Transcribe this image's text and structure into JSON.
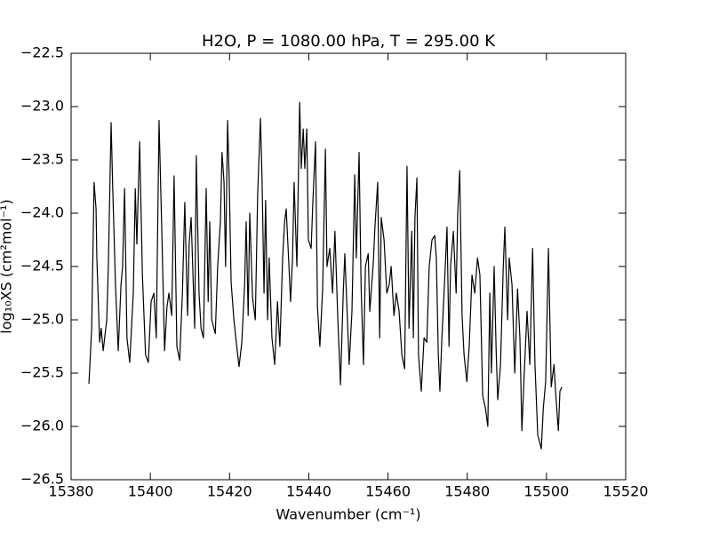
{
  "chart_data": {
    "type": "line",
    "title": "H2O, P = 1080.00 hPa, T = 295.00 K",
    "xlabel": "Wavenumber (cm⁻¹)",
    "ylabel": "log₁₀XS (cm²mol⁻¹)",
    "color": "#000000",
    "xlim": [
      15380,
      15520
    ],
    "xticks": [
      15380,
      15400,
      15420,
      15440,
      15460,
      15480,
      15500,
      15520
    ],
    "ylim": [
      -26.5,
      -22.5
    ],
    "yticks": [
      {
        "value": -22.5,
        "label": "−22.5"
      },
      {
        "value": -23.0,
        "label": "−23.0"
      },
      {
        "value": -23.5,
        "label": "−23.5"
      },
      {
        "value": -24.0,
        "label": "−24.0"
      },
      {
        "value": -24.5,
        "label": "−24.5"
      },
      {
        "value": -25.0,
        "label": "−25.0"
      },
      {
        "value": -25.5,
        "label": "−25.5"
      },
      {
        "value": -26.0,
        "label": "−26.0"
      },
      {
        "value": -26.5,
        "label": "−26.5"
      }
    ],
    "x": [
      15384.5,
      15385.2,
      15385.8,
      15386.3,
      15386.5,
      15387.2,
      15387.6,
      15388.1,
      15389.0,
      15389.4,
      15390.1,
      15390.5,
      15391.2,
      15391.9,
      15392.6,
      15393.0,
      15393.5,
      15394.1,
      15394.8,
      15395.7,
      15396.2,
      15396.6,
      15397.3,
      15398.0,
      15398.8,
      15399.5,
      15400.2,
      15400.9,
      15401.5,
      15402.2,
      15402.9,
      15403.6,
      15404.2,
      15404.7,
      15405.4,
      15406.0,
      15406.7,
      15407.4,
      15408.1,
      15408.7,
      15409.4,
      15409.8,
      15410.3,
      15410.7,
      15411.2,
      15411.6,
      15412.3,
      15412.8,
      15413.4,
      15414.1,
      15414.6,
      15415.0,
      15415.5,
      15416.4,
      15417.0,
      15417.7,
      15418.1,
      15418.6,
      15419.0,
      15419.5,
      15419.9,
      15420.4,
      15421.1,
      15421.7,
      15422.4,
      15423.1,
      15423.8,
      15424.2,
      15424.7,
      15425.1,
      15425.8,
      15426.5,
      15427.1,
      15427.8,
      15428.2,
      15428.7,
      15429.1,
      15429.6,
      15430.0,
      15430.7,
      15431.4,
      15432.1,
      15432.7,
      15433.4,
      15433.9,
      15434.3,
      15435.0,
      15435.4,
      15435.9,
      15436.3,
      15437.0,
      15437.7,
      15438.1,
      15438.6,
      15439.0,
      15439.5,
      15439.9,
      15440.6,
      15441.0,
      15441.7,
      15442.2,
      15442.8,
      15443.5,
      15444.2,
      15444.6,
      15445.3,
      15446.0,
      15446.6,
      15447.3,
      15448.0,
      15448.7,
      15449.1,
      15449.8,
      15450.2,
      15450.9,
      15451.6,
      15452.0,
      15452.7,
      15453.2,
      15453.8,
      15454.3,
      15455.0,
      15455.4,
      15456.3,
      15456.7,
      15457.4,
      15457.9,
      15458.3,
      15459.0,
      15459.7,
      15460.3,
      15460.8,
      15461.5,
      15462.1,
      15462.8,
      15463.5,
      15464.2,
      15464.8,
      15465.3,
      15466.0,
      15466.4,
      15466.8,
      15467.3,
      15467.7,
      15468.4,
      15469.1,
      15469.8,
      15470.4,
      15471.1,
      15471.8,
      15472.2,
      15472.7,
      15473.1,
      15473.6,
      15474.2,
      15474.9,
      15475.4,
      15475.8,
      15476.5,
      15477.2,
      15477.6,
      15478.1,
      15478.7,
      15479.2,
      15479.9,
      15480.5,
      15481.2,
      15481.9,
      15482.6,
      15483.2,
      15483.9,
      15484.6,
      15485.2,
      15485.7,
      15486.1,
      15486.8,
      15487.3,
      15487.7,
      15488.4,
      15489.1,
      15489.5,
      15490.2,
      15490.6,
      15491.3,
      15492.0,
      15492.7,
      15493.3,
      15493.8,
      15494.4,
      15495.1,
      15495.8,
      15496.5,
      15497.1,
      15497.8,
      15498.7,
      15499.2,
      15499.8,
      15500.5,
      15501.2,
      15501.9,
      15502.3,
      15503.0,
      15503.4,
      15503.9
    ],
    "values": [
      -25.6,
      -25.08,
      -23.71,
      -23.96,
      -24.42,
      -25.21,
      -25.08,
      -25.29,
      -25.0,
      -24.5,
      -23.15,
      -23.75,
      -24.67,
      -25.29,
      -24.67,
      -24.5,
      -23.77,
      -25.17,
      -25.4,
      -24.75,
      -23.77,
      -24.29,
      -23.33,
      -24.58,
      -25.33,
      -25.4,
      -24.83,
      -24.75,
      -25.17,
      -23.13,
      -24.17,
      -25.29,
      -24.88,
      -24.75,
      -24.96,
      -23.65,
      -25.25,
      -25.38,
      -24.75,
      -23.9,
      -24.96,
      -24.29,
      -24.04,
      -24.5,
      -25.08,
      -23.46,
      -24.75,
      -25.08,
      -25.17,
      -23.77,
      -24.83,
      -24.08,
      -25.0,
      -25.13,
      -24.5,
      -24.07,
      -23.43,
      -23.71,
      -24.5,
      -23.13,
      -23.67,
      -24.65,
      -25.0,
      -25.21,
      -25.44,
      -25.21,
      -24.67,
      -24.08,
      -24.96,
      -24.0,
      -24.79,
      -25.0,
      -23.82,
      -23.11,
      -23.67,
      -24.75,
      -23.88,
      -25.0,
      -24.42,
      -25.17,
      -25.42,
      -24.83,
      -25.25,
      -24.42,
      -24.08,
      -23.96,
      -24.5,
      -24.83,
      -24.42,
      -23.71,
      -24.5,
      -22.96,
      -23.58,
      -23.21,
      -23.58,
      -23.21,
      -24.25,
      -24.33,
      -23.92,
      -23.33,
      -24.88,
      -25.25,
      -24.71,
      -23.4,
      -24.5,
      -24.33,
      -24.75,
      -24.17,
      -24.96,
      -25.61,
      -24.75,
      -24.38,
      -25.04,
      -25.42,
      -24.92,
      -23.64,
      -24.42,
      -23.43,
      -24.67,
      -25.42,
      -24.5,
      -24.38,
      -24.92,
      -24.46,
      -24.13,
      -23.71,
      -25.17,
      -24.04,
      -24.25,
      -24.75,
      -24.67,
      -24.5,
      -24.96,
      -24.75,
      -24.92,
      -25.33,
      -25.46,
      -23.56,
      -25.08,
      -24.17,
      -25.17,
      -24.04,
      -23.67,
      -25.33,
      -25.67,
      -25.17,
      -25.21,
      -24.5,
      -24.25,
      -24.21,
      -24.42,
      -25.33,
      -25.67,
      -25.17,
      -24.71,
      -24.13,
      -25.25,
      -24.5,
      -24.17,
      -24.75,
      -24.0,
      -23.6,
      -24.96,
      -25.33,
      -25.58,
      -25.25,
      -24.58,
      -24.75,
      -24.42,
      -24.58,
      -25.71,
      -25.83,
      -26.0,
      -24.75,
      -25.5,
      -24.5,
      -25.29,
      -25.75,
      -25.42,
      -24.5,
      -24.13,
      -25.0,
      -24.42,
      -24.67,
      -25.5,
      -24.71,
      -25.17,
      -26.04,
      -25.5,
      -24.92,
      -25.42,
      -24.33,
      -25.42,
      -26.08,
      -26.21,
      -25.83,
      -25.58,
      -24.33,
      -25.63,
      -25.42,
      -25.67,
      -26.04,
      -25.67,
      -25.63
    ]
  }
}
